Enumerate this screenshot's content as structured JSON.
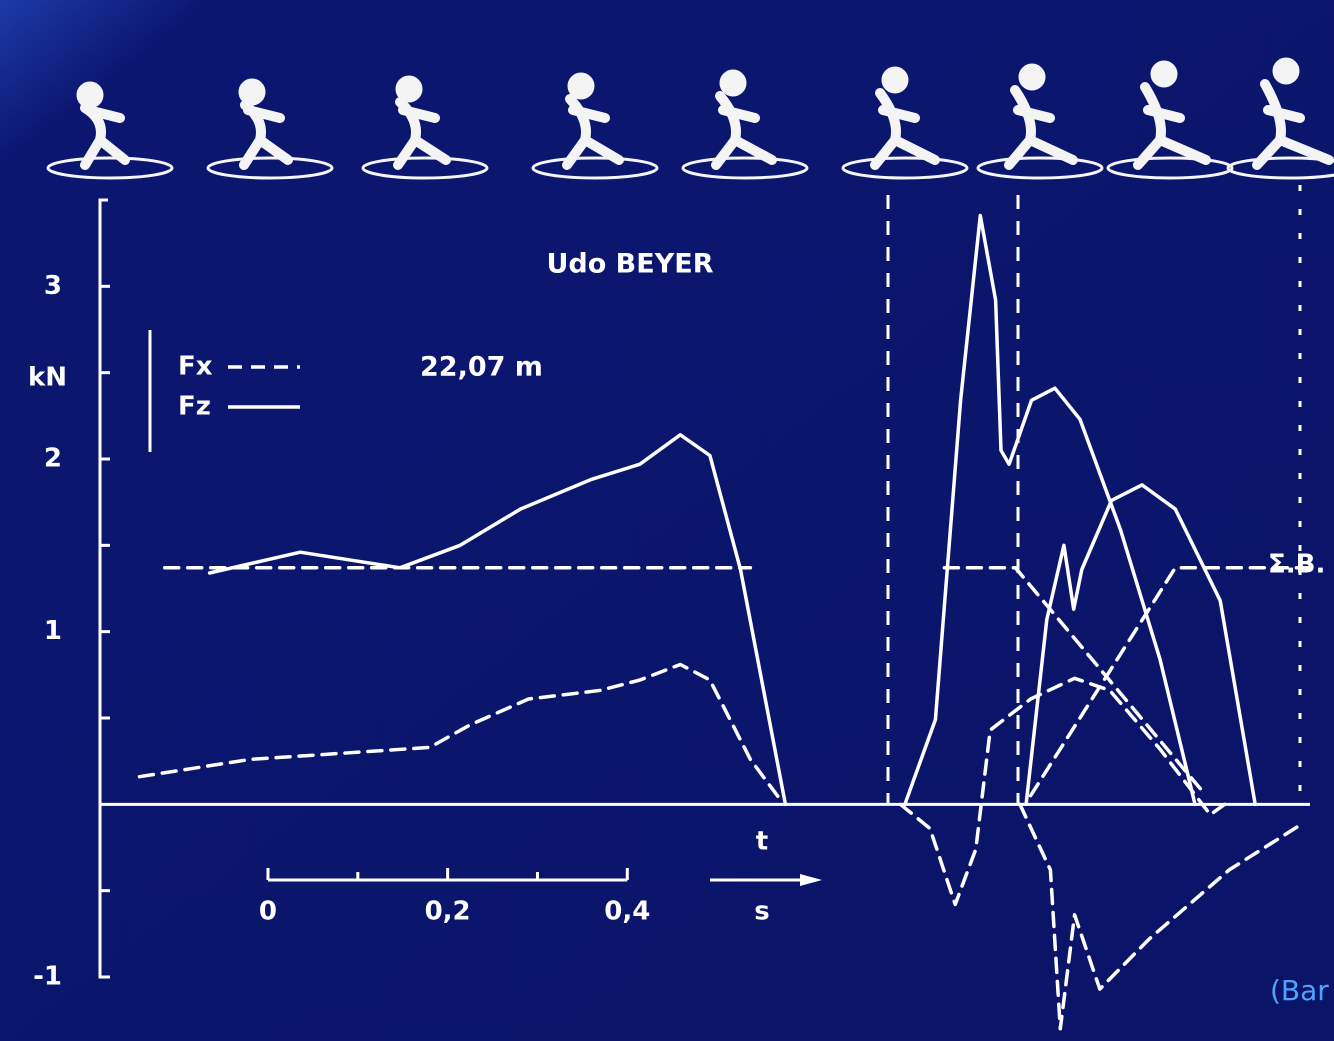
{
  "chart_data": {
    "type": "line",
    "title": "Udo BEYER",
    "subtitle": "22,07 m",
    "y_label": "kN",
    "reference_label": "Σ.B.",
    "source": "(Bar",
    "xlim": [
      -0.187,
      1.16
    ],
    "ylim": [
      -1,
      3.5
    ],
    "yticks": [
      -1,
      1,
      2,
      3
    ],
    "minor_yticks": [
      -0.5,
      0.5,
      1.5,
      2.5
    ],
    "scale_bar": {
      "ticks": [
        0,
        {
          "value": 0.2,
          "label": "0,2"
        },
        {
          "value": 0.4,
          "label": "0,4"
        }
      ],
      "minor_ticks": [
        0.1,
        0.3
      ],
      "axis_label": "t",
      "unit": "s"
    },
    "series": [
      {
        "name": "Fx",
        "color": "#ffffff",
        "dashed": true,
        "x": [
          -0.143,
          -0.02,
          0.18,
          0.225,
          0.29,
          0.37,
          0.414,
          0.459,
          0.492,
          0.537,
          0.57
        ],
        "values": [
          0.16,
          0.26,
          0.33,
          0.46,
          0.61,
          0.66,
          0.72,
          0.81,
          0.72,
          0.26,
          0.03
        ]
      },
      {
        "name": "Fz",
        "color": "#ffffff",
        "dashed": false,
        "x": [
          -0.065,
          0.036,
          0.147,
          0.214,
          0.281,
          0.359,
          0.414,
          0.459,
          0.492,
          0.526,
          0.576
        ],
        "values": [
          1.34,
          1.46,
          1.37,
          1.5,
          1.71,
          1.88,
          1.97,
          2.14,
          2.02,
          1.36,
          0
        ]
      },
      {
        "color": "#ffffff",
        "dashed": true,
        "x": [
          -0.115,
          0.537
        ],
        "values": [
          1.37,
          1.37
        ]
      },
      {
        "color": "#ffffff",
        "dashed": false,
        "x": [
          0.709,
          0.743,
          0.771,
          0.793,
          0.81,
          0.816,
          0.825,
          0.85,
          0.876,
          0.904,
          0.949,
          0.993,
          1.032
        ],
        "values": [
          0,
          0.49,
          2.34,
          3.41,
          2.92,
          2.05,
          1.97,
          2.34,
          2.41,
          2.23,
          1.59,
          0.84,
          0
        ]
      },
      {
        "color": "#ffffff",
        "dashed": false,
        "x": [
          0.844,
          0.867,
          0.886,
          0.897,
          0.906,
          0.939,
          0.973,
          1.01,
          1.06,
          1.099
        ],
        "values": [
          0,
          1.07,
          1.5,
          1.13,
          1.36,
          1.76,
          1.85,
          1.71,
          1.18,
          0
        ]
      },
      {
        "color": "#ffffff",
        "dashed": true,
        "x": [
          0.704,
          0.737,
          0.765,
          0.788,
          0.804,
          0.849,
          0.898,
          0.937,
          0.993,
          1.049,
          1.065
        ],
        "values": [
          0,
          -0.14,
          -0.58,
          -0.26,
          0.43,
          0.61,
          0.73,
          0.66,
          0.32,
          -0.06,
          0
        ]
      },
      {
        "color": "#ffffff",
        "dashed": true,
        "x": [
          0.837,
          0.871,
          0.882,
          0.898,
          0.926,
          0.981,
          1.07,
          1.149
        ],
        "values": [
          0,
          -0.38,
          -1.3,
          -0.64,
          -1.07,
          -0.78,
          -0.38,
          -0.12
        ]
      },
      {
        "color": "#ffffff",
        "dashed": true,
        "x": [
          0.753,
          0.832,
          1.038
        ],
        "values": [
          1.37,
          1.37,
          0.09
        ]
      },
      {
        "color": "#ffffff",
        "dashed": true,
        "x": [
          0.849,
          1.01,
          1.094,
          1.16
        ],
        "values": [
          0.05,
          1.37,
          1.37,
          1.37
        ]
      }
    ]
  }
}
